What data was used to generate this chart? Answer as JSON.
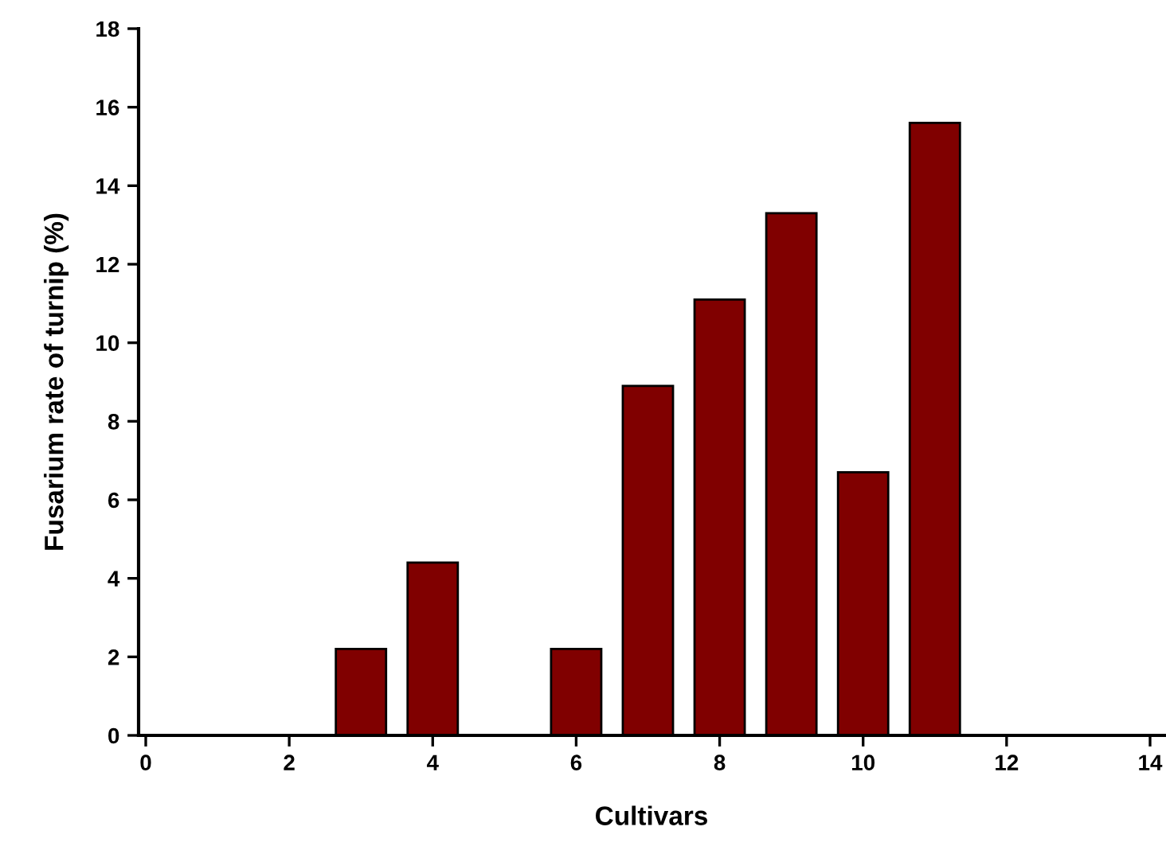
{
  "chart_data": {
    "type": "bar",
    "xlabel": "Cultivars",
    "ylabel": "Fusarium rate of turnip (%)",
    "x": [
      3,
      4,
      6,
      7,
      8,
      9,
      10,
      11
    ],
    "values": [
      2.2,
      4.4,
      2.2,
      8.9,
      11.1,
      13.3,
      6.7,
      15.6
    ],
    "color": "#800000",
    "xlim": [
      -0.1,
      14.2
    ],
    "xticks": [
      0,
      2,
      4,
      6,
      8,
      10,
      12,
      14
    ],
    "ylim": [
      0,
      18
    ],
    "yticks": [
      0,
      2,
      4,
      6,
      8,
      10,
      12,
      14,
      16,
      18
    ],
    "grid": false,
    "legend": false
  }
}
